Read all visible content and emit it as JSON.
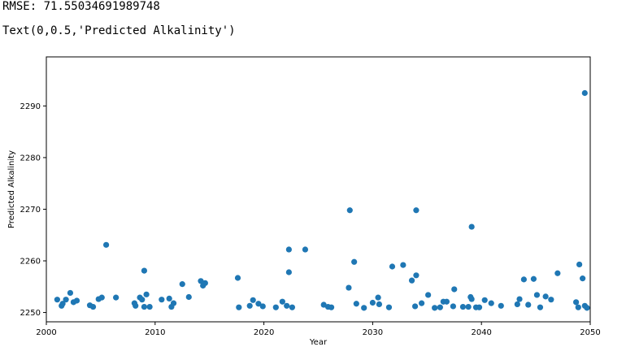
{
  "output": {
    "rmse_line": "RMSE: 71.55034691989748",
    "text_line": "Text(0,0.5,'Predicted Alkalinity')"
  },
  "colors": {
    "marker": "#1f77b4",
    "axes": "#000000"
  },
  "chart_data": {
    "type": "scatter",
    "title": "",
    "xlabel": "Year",
    "ylabel": "Predicted Alkalinity",
    "xlim": [
      2000,
      2050
    ],
    "ylim": [
      2248.2,
      2299.5
    ],
    "xticks": [
      2000,
      2010,
      2020,
      2030,
      2040,
      2050
    ],
    "yticks": [
      2250,
      2260,
      2270,
      2280,
      2290
    ],
    "grid": false,
    "points": [
      [
        2001.0,
        2252.5
      ],
      [
        2001.4,
        2251.3
      ],
      [
        2001.5,
        2251.7
      ],
      [
        2001.8,
        2252.5
      ],
      [
        2002.2,
        2253.8
      ],
      [
        2002.5,
        2252.0
      ],
      [
        2002.8,
        2252.3
      ],
      [
        2004.0,
        2251.4
      ],
      [
        2004.3,
        2251.1
      ],
      [
        2004.8,
        2252.6
      ],
      [
        2005.1,
        2252.9
      ],
      [
        2005.5,
        2263.1
      ],
      [
        2006.4,
        2252.9
      ],
      [
        2008.1,
        2251.8
      ],
      [
        2008.2,
        2251.3
      ],
      [
        2008.6,
        2252.9
      ],
      [
        2008.8,
        2252.5
      ],
      [
        2009.0,
        2258.1
      ],
      [
        2009.0,
        2251.1
      ],
      [
        2009.2,
        2253.5
      ],
      [
        2009.5,
        2251.1
      ],
      [
        2010.6,
        2252.5
      ],
      [
        2011.3,
        2252.7
      ],
      [
        2011.5,
        2251.1
      ],
      [
        2011.7,
        2251.8
      ],
      [
        2012.5,
        2255.5
      ],
      [
        2013.1,
        2253.0
      ],
      [
        2014.2,
        2256.1
      ],
      [
        2014.4,
        2255.2
      ],
      [
        2014.6,
        2255.7
      ],
      [
        2017.6,
        2256.7
      ],
      [
        2017.7,
        2251.0
      ],
      [
        2018.7,
        2251.3
      ],
      [
        2019.0,
        2252.4
      ],
      [
        2019.5,
        2251.7
      ],
      [
        2019.9,
        2251.2
      ],
      [
        2021.1,
        2251.0
      ],
      [
        2021.7,
        2252.1
      ],
      [
        2022.1,
        2251.3
      ],
      [
        2022.3,
        2262.2
      ],
      [
        2022.3,
        2257.8
      ],
      [
        2022.6,
        2251.0
      ],
      [
        2023.8,
        2262.2
      ],
      [
        2025.5,
        2251.5
      ],
      [
        2025.9,
        2251.1
      ],
      [
        2026.2,
        2251.0
      ],
      [
        2027.8,
        2254.8
      ],
      [
        2027.9,
        2269.8
      ],
      [
        2028.3,
        2259.8
      ],
      [
        2028.5,
        2251.7
      ],
      [
        2029.2,
        2250.9
      ],
      [
        2030.0,
        2251.9
      ],
      [
        2030.5,
        2252.9
      ],
      [
        2030.6,
        2251.6
      ],
      [
        2031.5,
        2251.0
      ],
      [
        2031.8,
        2258.9
      ],
      [
        2032.8,
        2259.2
      ],
      [
        2033.6,
        2256.2
      ],
      [
        2033.9,
        2251.2
      ],
      [
        2034.0,
        2269.8
      ],
      [
        2034.0,
        2257.2
      ],
      [
        2034.5,
        2251.8
      ],
      [
        2035.1,
        2253.4
      ],
      [
        2035.7,
        2250.9
      ],
      [
        2036.2,
        2251.0
      ],
      [
        2036.5,
        2252.1
      ],
      [
        2036.8,
        2252.1
      ],
      [
        2037.4,
        2251.2
      ],
      [
        2037.5,
        2254.5
      ],
      [
        2038.3,
        2251.1
      ],
      [
        2038.8,
        2251.1
      ],
      [
        2039.0,
        2253.0
      ],
      [
        2039.1,
        2266.6
      ],
      [
        2039.1,
        2252.6
      ],
      [
        2039.5,
        2251.0
      ],
      [
        2039.8,
        2251.0
      ],
      [
        2040.3,
        2252.4
      ],
      [
        2040.9,
        2251.8
      ],
      [
        2041.8,
        2251.3
      ],
      [
        2043.3,
        2251.6
      ],
      [
        2043.5,
        2252.6
      ],
      [
        2043.9,
        2256.4
      ],
      [
        2044.3,
        2251.5
      ],
      [
        2044.8,
        2256.5
      ],
      [
        2045.1,
        2253.4
      ],
      [
        2045.4,
        2251.0
      ],
      [
        2045.9,
        2253.1
      ],
      [
        2046.4,
        2252.5
      ],
      [
        2047.0,
        2257.6
      ],
      [
        2048.7,
        2252.0
      ],
      [
        2048.9,
        2251.0
      ],
      [
        2049.0,
        2259.3
      ],
      [
        2049.3,
        2256.6
      ],
      [
        2049.5,
        2292.5
      ],
      [
        2049.5,
        2251.3
      ],
      [
        2049.7,
        2250.9
      ]
    ]
  }
}
